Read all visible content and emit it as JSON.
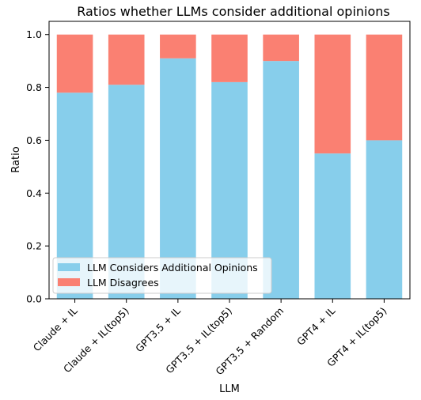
{
  "chart_data": {
    "type": "bar",
    "stacked": true,
    "title": "Ratios whether LLMs consider additional opinions",
    "xlabel": "LLM",
    "ylabel": "Ratio",
    "ylim": [
      0,
      1.05
    ],
    "y_ticks": [
      "0.0",
      "0.2",
      "0.4",
      "0.6",
      "0.8",
      "1.0"
    ],
    "categories": [
      "Claude + IL",
      "Claude + IL(top5)",
      "GPT3.5 + IL",
      "GPT3.5 + IL(top5)",
      "GPT3.5 + Random",
      "GPT4 + IL",
      "GPT4 + IL(top5)"
    ],
    "series": [
      {
        "name": "LLM Considers Additional Opinions",
        "color": "#87CEEB",
        "values": [
          0.78,
          0.81,
          0.91,
          0.82,
          0.9,
          0.55,
          0.6
        ]
      },
      {
        "name": "LLM Disagrees",
        "color": "#FA8072",
        "values": [
          0.22,
          0.19,
          0.09,
          0.18,
          0.1,
          0.45,
          0.4
        ]
      }
    ],
    "grid": false,
    "legend_position": "lower-left"
  }
}
